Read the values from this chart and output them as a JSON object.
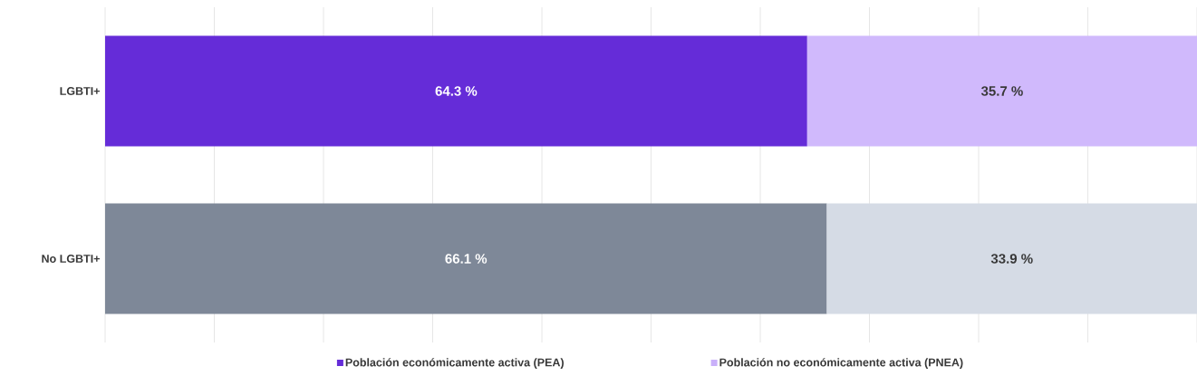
{
  "chart_data": {
    "type": "bar",
    "orientation": "horizontal",
    "stacked": true,
    "categories": [
      "LGBTI+",
      "No LGBTI+"
    ],
    "series": [
      {
        "name": "Población económicamente activa (PEA)",
        "color": "#652cd8",
        "colors": [
          "#652cd8",
          "#7e8898"
        ],
        "values": [
          64.3,
          66.1
        ],
        "value_labels": [
          "64.3 %",
          "66.1 %"
        ]
      },
      {
        "name": "Población no económicamente activa (PNEA)",
        "color": "#c9b0fa",
        "colors": [
          "#d0b9fc",
          "#d5dbe5"
        ],
        "values": [
          35.7,
          33.9
        ],
        "value_labels": [
          "35.7 %",
          "33.9 %"
        ]
      }
    ],
    "xlim": [
      0,
      100
    ],
    "xticks": [
      {
        "value": 0,
        "label": null
      },
      {
        "value": 10,
        "label": null
      },
      {
        "value": 20,
        "label": null
      },
      {
        "value": 30,
        "label": null
      },
      {
        "value": 40,
        "label": null
      },
      {
        "value": 50,
        "label": null
      },
      {
        "value": 60,
        "label": null
      },
      {
        "value": 70,
        "label": null
      },
      {
        "value": 80,
        "label": null
      },
      {
        "value": 90,
        "label": null
      },
      {
        "value": 100,
        "label": null
      }
    ],
    "grid": "x",
    "tick_labels": "y",
    "legend": "bottom"
  }
}
